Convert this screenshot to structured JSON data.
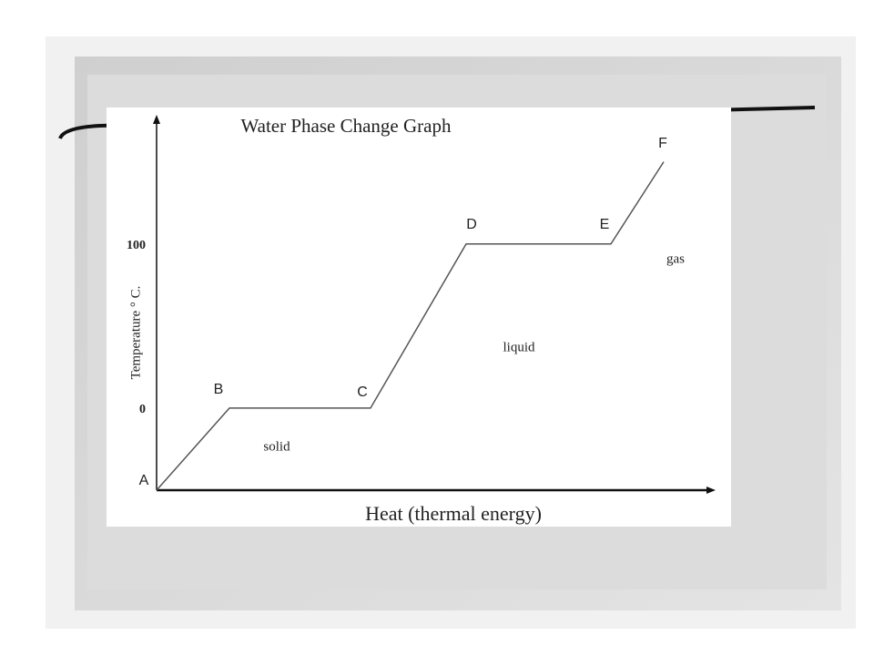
{
  "chart_data": {
    "type": "line",
    "title": "Water Phase Change Graph",
    "x_label": "Heat (thermal energy)",
    "y_label": "Temperature ° C.",
    "x": [
      0,
      80,
      235,
      340,
      499,
      557
    ],
    "series": [
      {
        "color": "#555555",
        "values": [
          -50,
          0,
          0,
          100,
          100,
          150
        ]
      }
    ],
    "point_labels": [
      "A",
      "B",
      "C",
      "D",
      "E",
      "F"
    ],
    "annotations": [
      "solid",
      "liquid",
      "gas"
    ],
    "xlim": [
      0,
      610
    ],
    "ylim": [
      -50,
      177
    ],
    "yticks": [
      0,
      100
    ],
    "grid": false
  }
}
